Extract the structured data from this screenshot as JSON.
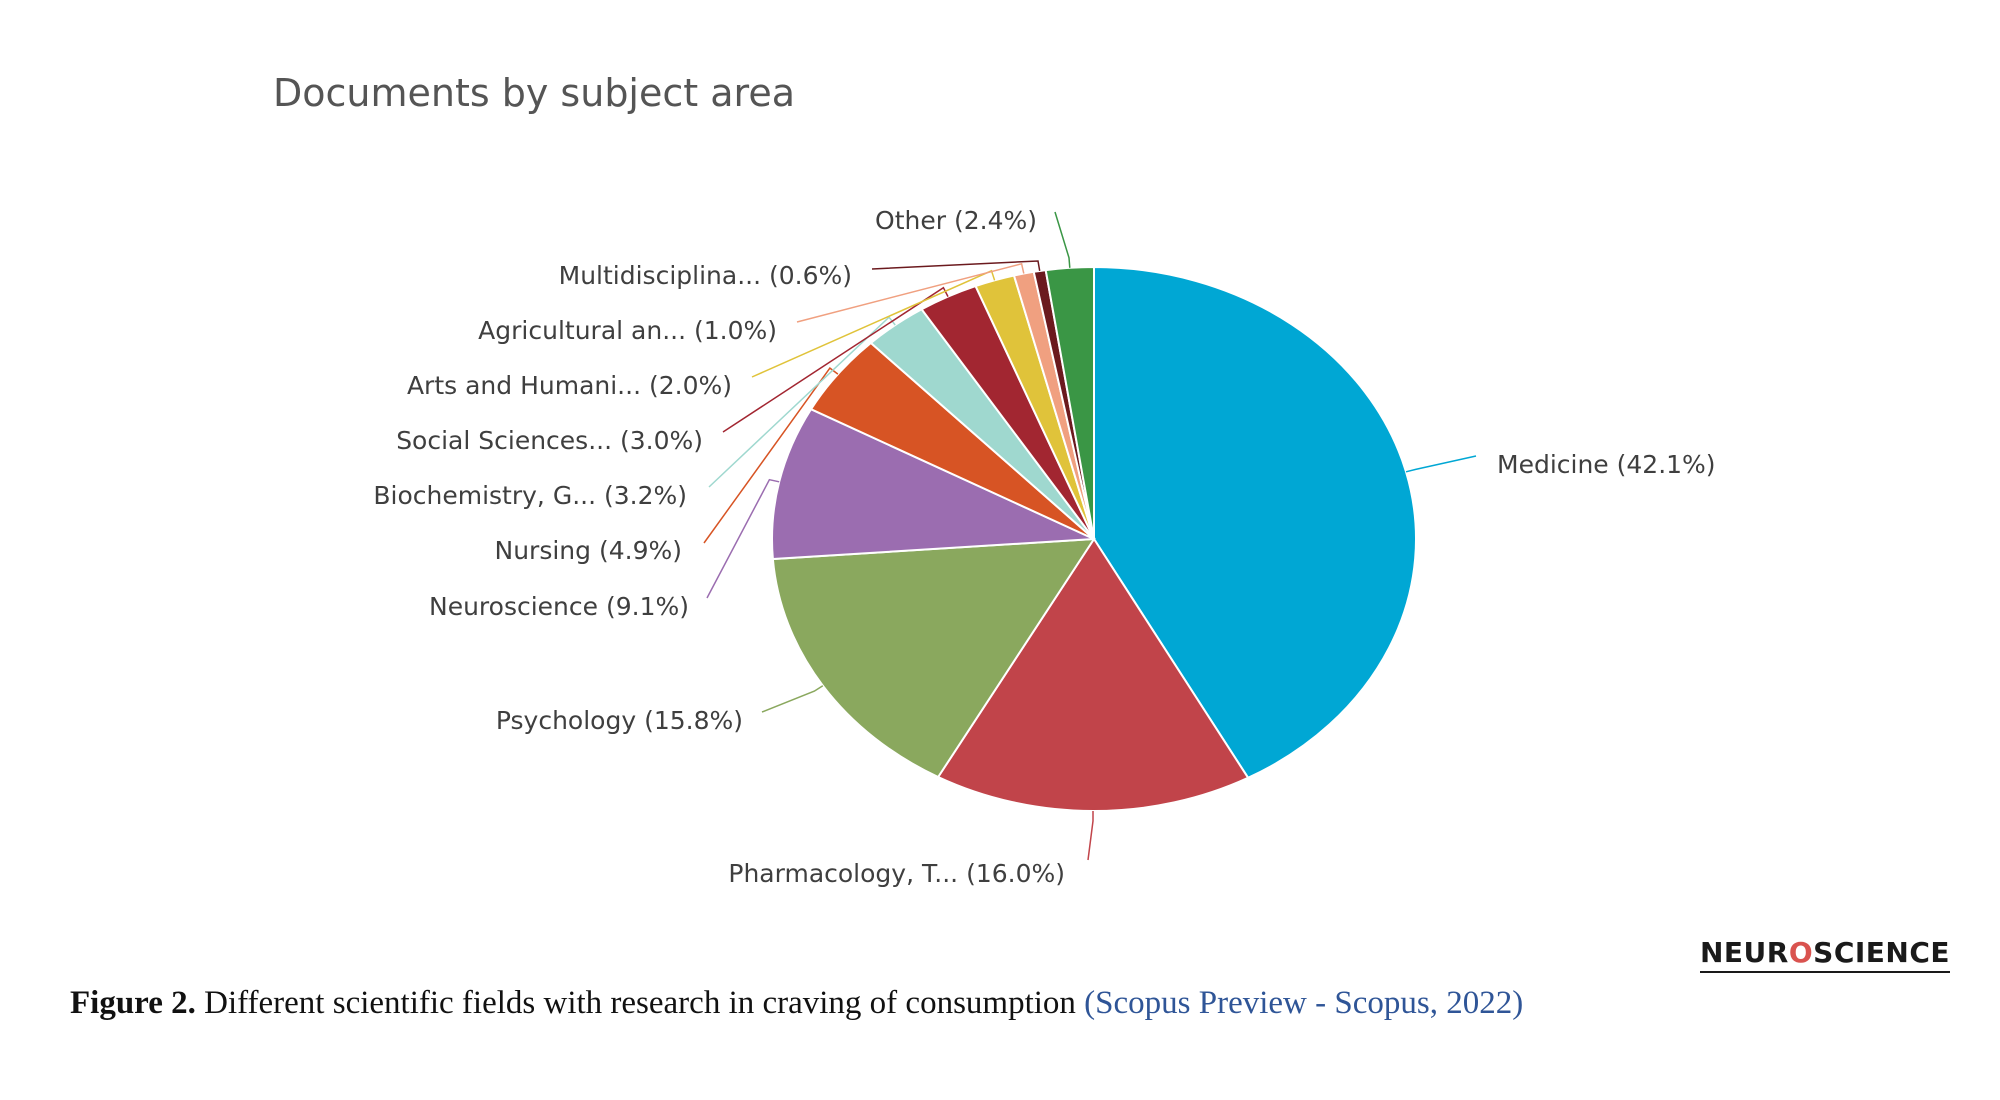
{
  "logo": {
    "text": "NEUROSCIENCE",
    "parts": [
      "NEUR",
      "O",
      "SCIENCE"
    ]
  },
  "caption": {
    "label": "Figure 2.",
    "text": "Different scientific fields with research in craving of consumption",
    "citation": "(Scopus Preview - Scopus, 2022)"
  },
  "chart_data": {
    "type": "pie",
    "title": "Documents by subject area",
    "start_angle_deg": 0,
    "direction": "clockwise",
    "legend": "none",
    "slices": [
      {
        "label": "Medicine (42.1%)",
        "value": 42.1,
        "color": "#00a7d4",
        "label_side": "right"
      },
      {
        "label": "Pharmacology, T... (16.0%)",
        "value": 16.0,
        "color": "#c1444a",
        "label_side": "bottom"
      },
      {
        "label": "Psychology (15.8%)",
        "value": 15.8,
        "color": "#8aa85e",
        "label_side": "left"
      },
      {
        "label": "Neuroscience (9.1%)",
        "value": 9.1,
        "color": "#9b6db0",
        "label_side": "left"
      },
      {
        "label": "Nursing (4.9%)",
        "value": 4.9,
        "color": "#d75424",
        "label_side": "left"
      },
      {
        "label": "Biochemistry, G... (3.2%)",
        "value": 3.2,
        "color": "#9fd8cf",
        "label_side": "left"
      },
      {
        "label": "Social Sciences... (3.0%)",
        "value": 3.0,
        "color": "#a22631",
        "label_side": "left"
      },
      {
        "label": "Arts and Humani... (2.0%)",
        "value": 2.0,
        "color": "#e0c33a",
        "label_side": "left"
      },
      {
        "label": "Agricultural an... (1.0%)",
        "value": 1.0,
        "color": "#f0a080",
        "label_side": "left"
      },
      {
        "label": "Multidisciplina... (0.6%)",
        "value": 0.6,
        "color": "#6b1a1e",
        "label_side": "left"
      },
      {
        "label": "Other (2.4%)",
        "value": 2.4,
        "color": "#3a9645",
        "label_side": "top"
      }
    ]
  }
}
